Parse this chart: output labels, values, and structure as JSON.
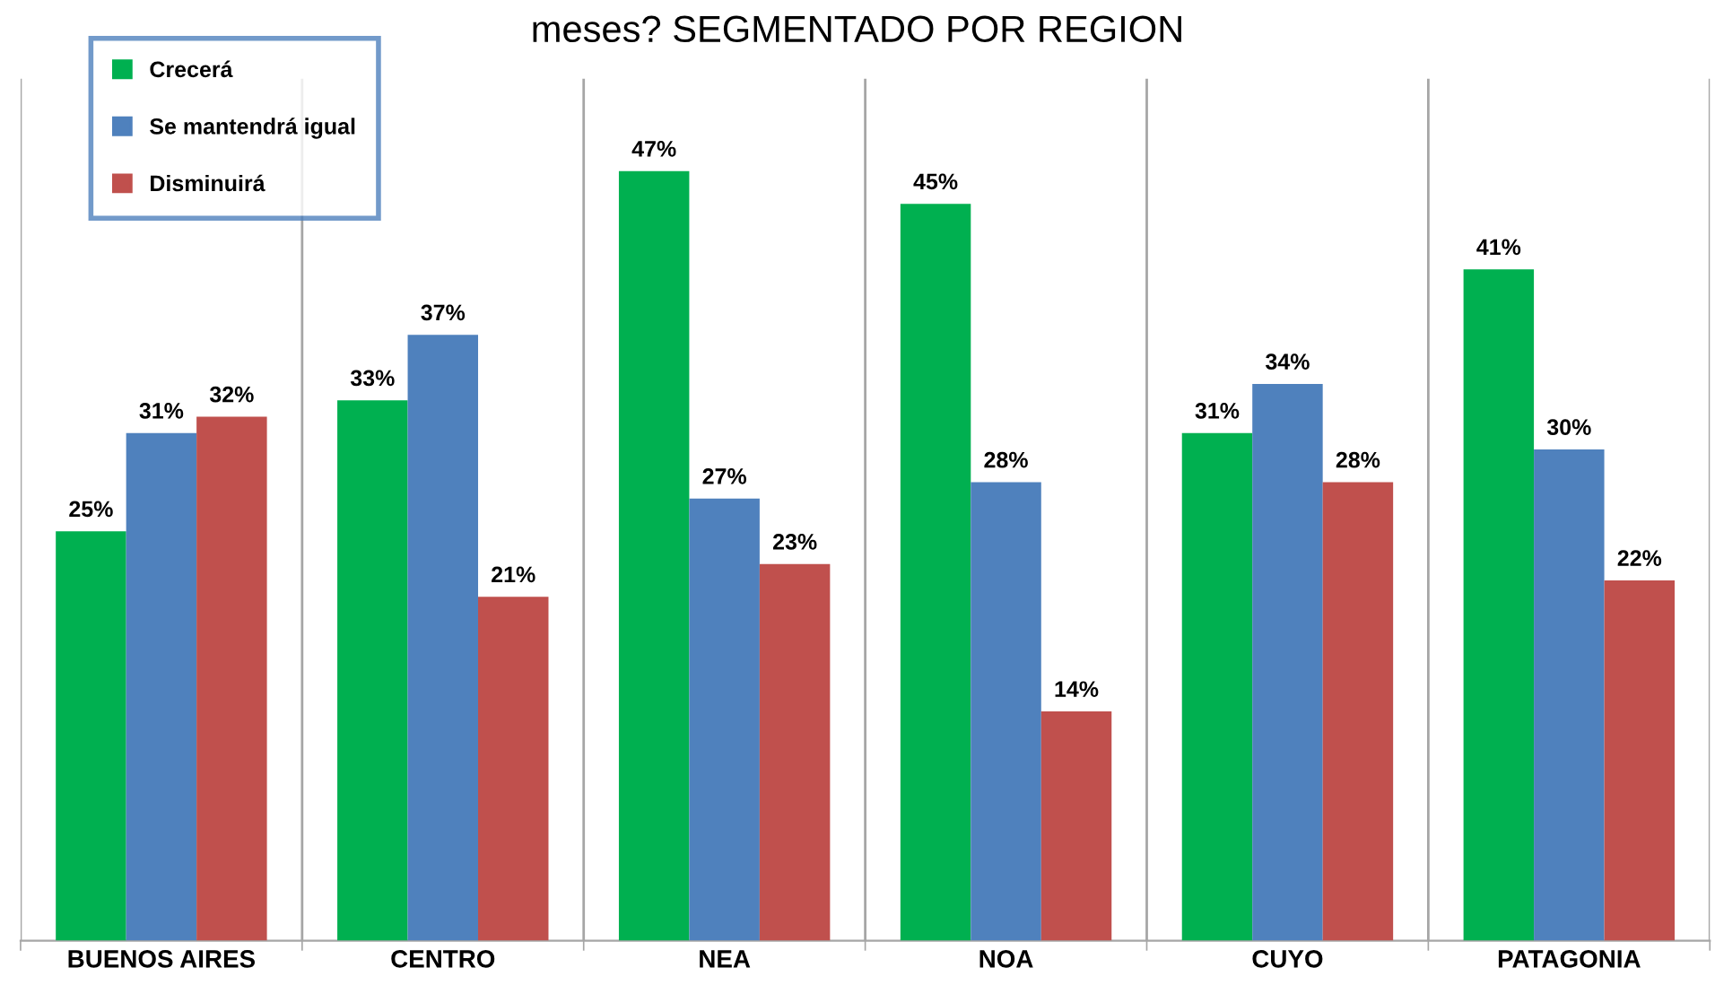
{
  "chart_data": {
    "type": "bar",
    "title": "meses? SEGMENTADO POR REGION",
    "categories": [
      "BUENOS AIRES",
      "CENTRO",
      "NEA",
      "NOA",
      "CUYO",
      "PATAGONIA"
    ],
    "series": [
      {
        "name": "Crecerá",
        "color": "#00b050",
        "values": [
          25,
          33,
          47,
          45,
          31,
          41
        ],
        "value_labels": [
          "25%",
          "33%",
          "47%",
          "45%",
          "31%",
          "41%"
        ]
      },
      {
        "name": "Se mantendrá igual",
        "color": "#4f81bd",
        "values": [
          31,
          37,
          27,
          28,
          34,
          30
        ],
        "value_labels": [
          "31%",
          "37%",
          "27%",
          "28%",
          "34%",
          "30%"
        ]
      },
      {
        "name": "Disminuirá",
        "color": "#c0504d",
        "values": [
          32,
          21,
          23,
          14,
          28,
          22
        ],
        "value_labels": [
          "32%",
          "21%",
          "23%",
          "14%",
          "28%",
          "22%"
        ]
      }
    ],
    "grid": "x",
    "legend": "top left"
  }
}
